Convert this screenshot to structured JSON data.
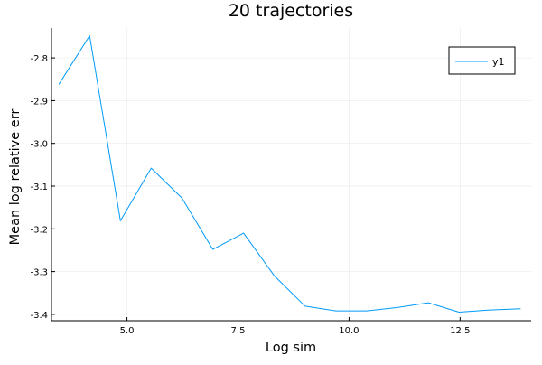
{
  "chart_data": {
    "type": "line",
    "title": "20 trajectories",
    "xlabel": "Log sim",
    "ylabel": "Mean log relative err",
    "xlim": [
      3.3,
      14.1
    ],
    "ylim": [
      -3.415,
      -2.73
    ],
    "xticks": [
      5.0,
      7.5,
      10.0,
      12.5
    ],
    "xtick_labels": [
      "5.0",
      "7.5",
      "10.0",
      "12.5"
    ],
    "yticks": [
      -2.8,
      -2.9,
      -3.0,
      -3.1,
      -3.2,
      -3.3,
      -3.4
    ],
    "ytick_labels": [
      "-2.8",
      "-2.9",
      "-3.0",
      "-3.1",
      "-3.2",
      "-3.3",
      "-3.4"
    ],
    "grid": true,
    "legend_position": "top-right",
    "series": [
      {
        "name": "y1",
        "color": "#009af9",
        "x": [
          3.466,
          4.159,
          4.852,
          5.545,
          6.238,
          6.931,
          7.625,
          8.318,
          9.011,
          9.704,
          10.397,
          11.09,
          11.783,
          12.476,
          13.169,
          13.863
        ],
        "y": [
          -2.862,
          -2.748,
          -3.181,
          -3.058,
          -3.128,
          -3.248,
          -3.21,
          -3.31,
          -3.381,
          -3.392,
          -3.392,
          -3.384,
          -3.373,
          -3.395,
          -3.39,
          -3.387
        ]
      }
    ]
  }
}
